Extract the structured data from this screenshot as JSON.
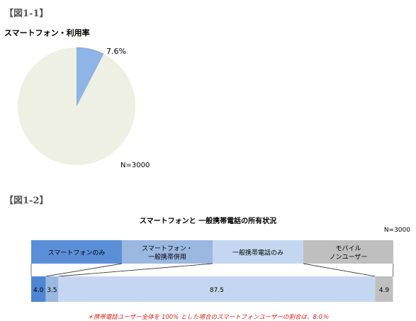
{
  "figure1": {
    "label": "【図1-1】"
  },
  "figure2": {
    "label": "【図1-2】"
  },
  "note": "＊携帯電話ユーザー全体を 100% とした場合のスマートフォンユーザーの割合は、8.0％",
  "chart_data": [
    {
      "type": "pie",
      "title": "スマートフォン・利用率",
      "slices": [
        {
          "name": "スマートフォン",
          "value": 7.6,
          "label": "7.6%",
          "color": "#8eb4e8"
        },
        {
          "name": "",
          "value": 92.4,
          "label": "",
          "color": "#eef0e3"
        }
      ],
      "n_label": "N=3000"
    },
    {
      "type": "bar",
      "orientation": "horizontal-stacked",
      "title": "スマートフォンと 一般携帯電話の所有状況",
      "n_label": "N=3000",
      "categories": [
        {
          "name": "スマートフォンのみ",
          "lines": [
            "スマートフォンのみ"
          ],
          "value": 4.0,
          "label": "4.0",
          "color": "#4f86d4",
          "head_color": "#5a8fd8"
        },
        {
          "name": "スマートフォン・一般携帯併用",
          "lines": [
            "スマートフォン・",
            "一般携帯併用"
          ],
          "value": 3.5,
          "label": "3.5",
          "color": "#9ab8e0",
          "head_color": "#9ab8e0"
        },
        {
          "name": "一般携帯電話のみ",
          "lines": [
            "一般携帯電話のみ"
          ],
          "value": 87.5,
          "label": "87.5",
          "color": "#c5d7f0",
          "head_color": "#c5d7f0"
        },
        {
          "name": "モバイル ノンユーザー",
          "lines": [
            "モバイル",
            "ノンユーザー"
          ],
          "value": 4.9,
          "label": "4.9",
          "color": "#bfbfbf",
          "head_color": "#bfbfbf"
        }
      ],
      "xlim": [
        0,
        100
      ]
    }
  ]
}
